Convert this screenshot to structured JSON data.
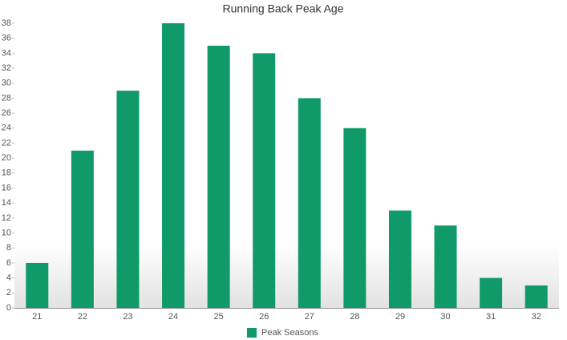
{
  "chart_data": {
    "type": "bar",
    "title": "Running Back Peak Age",
    "categories": [
      "21",
      "22",
      "23",
      "24",
      "25",
      "26",
      "27",
      "28",
      "29",
      "30",
      "31",
      "32"
    ],
    "series": [
      {
        "name": "Peak Seasons",
        "color": "#119a69",
        "values": [
          6,
          21,
          29,
          38,
          35,
          34,
          28,
          24,
          13,
          11,
          4,
          3
        ]
      }
    ],
    "ylim": [
      0,
      38
    ],
    "yticks": [
      0,
      2,
      4,
      6,
      8,
      10,
      12,
      14,
      16,
      18,
      20,
      22,
      24,
      26,
      28,
      30,
      32,
      34,
      36,
      38
    ],
    "legend": "bottom"
  }
}
